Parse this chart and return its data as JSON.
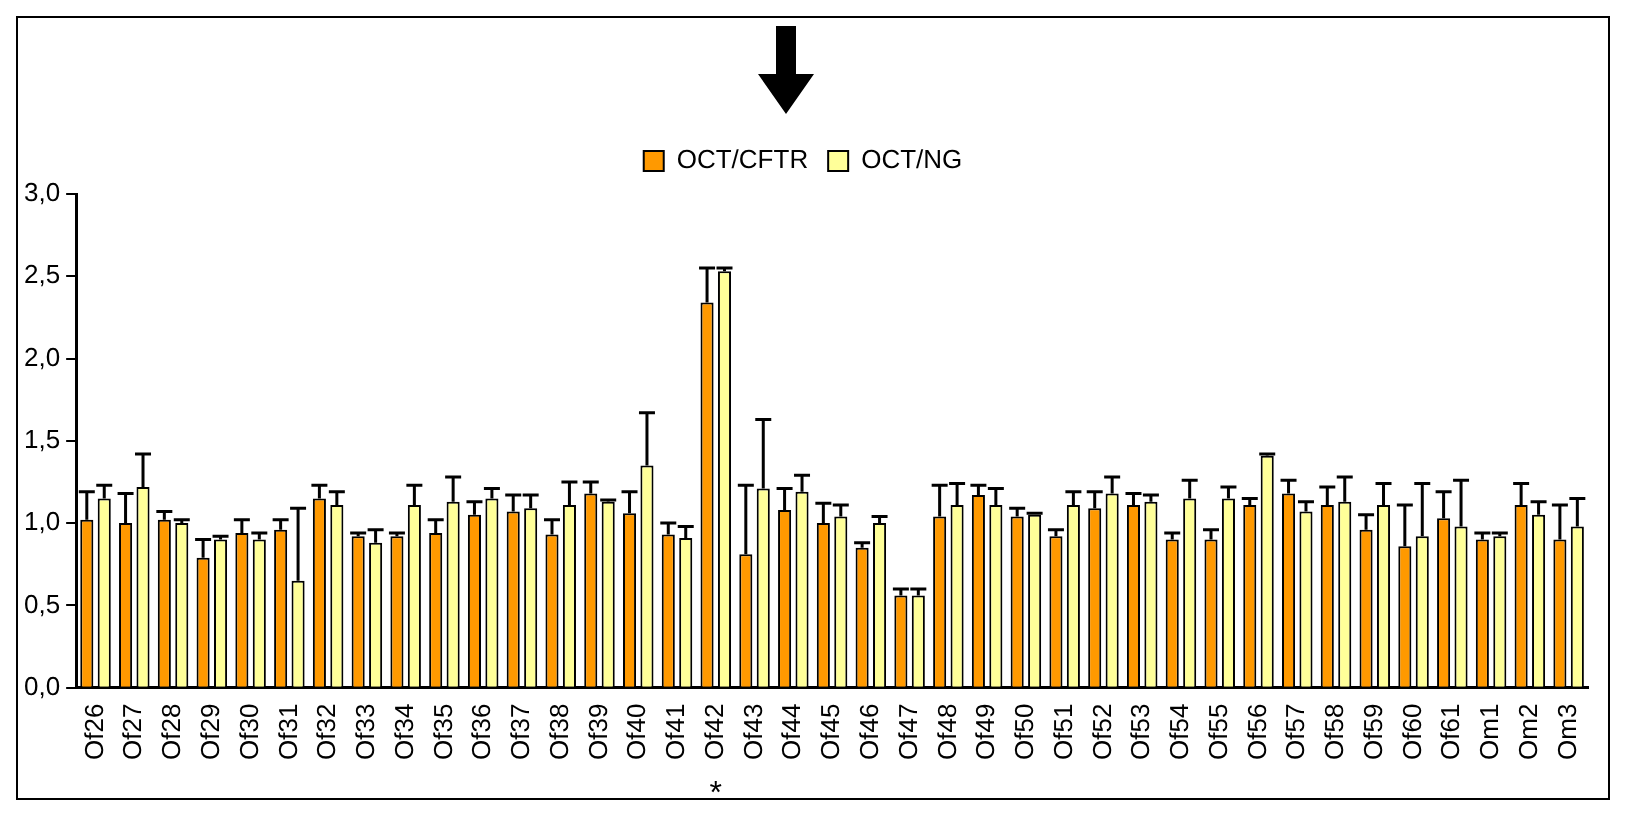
{
  "chart_data": {
    "type": "bar",
    "categories": [
      "Of26",
      "Of27",
      "Of28",
      "Of29",
      "Of30",
      "Of31",
      "Of32",
      "Of33",
      "Of34",
      "Of35",
      "Of36",
      "Of37",
      "Of38",
      "Of39",
      "Of40",
      "Of41",
      "Of42",
      "Of43",
      "Of44",
      "Of45",
      "Of46",
      "Of47",
      "Of48",
      "Of49",
      "Of50",
      "Of51",
      "Of52",
      "Of53",
      "Of54",
      "Of55",
      "Of56",
      "Of57",
      "Of58",
      "Of59",
      "Of60",
      "Of61",
      "Om1",
      "Om2",
      "Om3"
    ],
    "series": [
      {
        "name": "OCT/CFTR",
        "color": "#ff9900",
        "values": [
          1.02,
          1.0,
          1.02,
          0.79,
          0.94,
          0.96,
          1.15,
          0.92,
          0.92,
          0.94,
          1.05,
          1.07,
          0.93,
          1.18,
          1.06,
          0.93,
          2.34,
          0.81,
          1.08,
          1.0,
          0.85,
          0.56,
          1.04,
          1.17,
          1.04,
          0.92,
          1.09,
          1.11,
          0.9,
          0.9,
          1.11,
          1.18,
          1.11,
          0.96,
          0.86,
          1.03,
          0.9,
          1.11,
          0.9
        ],
        "errors": [
          [
            1.02,
            1.19
          ],
          [
            1.0,
            1.18
          ],
          [
            1.02,
            1.07
          ],
          [
            0.79,
            0.9
          ],
          [
            0.94,
            1.02
          ],
          [
            0.96,
            1.02
          ],
          [
            1.15,
            1.23
          ],
          [
            0.92,
            0.94
          ],
          [
            0.92,
            0.94
          ],
          [
            0.94,
            1.02
          ],
          [
            1.05,
            1.13
          ],
          [
            1.07,
            1.17
          ],
          [
            0.93,
            1.02
          ],
          [
            1.18,
            1.25
          ],
          [
            1.06,
            1.19
          ],
          [
            0.93,
            1.0
          ],
          [
            2.34,
            2.55
          ],
          [
            0.81,
            1.23
          ],
          [
            1.08,
            1.21
          ],
          [
            1.0,
            1.12
          ],
          [
            0.85,
            0.88
          ],
          [
            0.56,
            0.6
          ],
          [
            1.04,
            1.23
          ],
          [
            1.17,
            1.23
          ],
          [
            1.04,
            1.09
          ],
          [
            0.92,
            0.96
          ],
          [
            1.09,
            1.19
          ],
          [
            1.11,
            1.18
          ],
          [
            0.9,
            0.94
          ],
          [
            0.9,
            0.96
          ],
          [
            1.11,
            1.15
          ],
          [
            1.18,
            1.26
          ],
          [
            1.11,
            1.22
          ],
          [
            0.96,
            1.05
          ],
          [
            0.86,
            1.11
          ],
          [
            1.03,
            1.19
          ],
          [
            0.9,
            0.94
          ],
          [
            1.11,
            1.24
          ],
          [
            0.9,
            1.11
          ]
        ]
      },
      {
        "name": "OCT/NG",
        "color": "#ffff99",
        "values": [
          1.15,
          1.22,
          1.0,
          0.9,
          0.9,
          0.65,
          1.11,
          0.88,
          1.11,
          1.13,
          1.15,
          1.09,
          1.11,
          1.13,
          1.35,
          0.91,
          2.53,
          1.21,
          1.19,
          1.04,
          1.0,
          0.56,
          1.11,
          1.11,
          1.05,
          1.11,
          1.18,
          1.13,
          1.15,
          1.15,
          1.41,
          1.07,
          1.13,
          1.11,
          0.92,
          0.98,
          0.92,
          1.05,
          0.98
        ],
        "errors": [
          [
            1.15,
            1.23
          ],
          [
            1.22,
            1.42
          ],
          [
            1.0,
            1.02
          ],
          [
            0.9,
            0.92
          ],
          [
            0.9,
            0.94
          ],
          [
            0.65,
            1.09
          ],
          [
            1.11,
            1.19
          ],
          [
            0.88,
            0.96
          ],
          [
            1.11,
            1.23
          ],
          [
            1.13,
            1.28
          ],
          [
            1.15,
            1.21
          ],
          [
            1.09,
            1.17
          ],
          [
            1.11,
            1.25
          ],
          [
            1.13,
            1.14
          ],
          [
            1.35,
            1.67
          ],
          [
            0.91,
            0.98
          ],
          [
            2.53,
            2.55
          ],
          [
            1.21,
            1.63
          ],
          [
            1.19,
            1.29
          ],
          [
            1.04,
            1.11
          ],
          [
            1.0,
            1.04
          ],
          [
            0.56,
            0.6
          ],
          [
            1.11,
            1.24
          ],
          [
            1.11,
            1.21
          ],
          [
            1.05,
            1.06
          ],
          [
            1.11,
            1.19
          ],
          [
            1.18,
            1.28
          ],
          [
            1.13,
            1.17
          ],
          [
            1.15,
            1.26
          ],
          [
            1.15,
            1.22
          ],
          [
            1.41,
            1.42
          ],
          [
            1.07,
            1.13
          ],
          [
            1.13,
            1.28
          ],
          [
            1.11,
            1.24
          ],
          [
            0.92,
            1.24
          ],
          [
            0.98,
            1.26
          ],
          [
            0.92,
            0.94
          ],
          [
            1.05,
            1.13
          ],
          [
            0.98,
            1.15
          ]
        ]
      }
    ],
    "ylim": [
      0,
      3
    ],
    "yticks": [
      {
        "value": 0,
        "label": "0,0"
      },
      {
        "value": 0.5,
        "label": "0,5"
      },
      {
        "value": 1,
        "label": "1,0"
      },
      {
        "value": 1.5,
        "label": "1,5"
      },
      {
        "value": 2,
        "label": "2,0"
      },
      {
        "value": 2.5,
        "label": "2,5"
      },
      {
        "value": 3,
        "label": "3,0"
      }
    ],
    "grid": false,
    "legend": "top",
    "annotations": [
      "*"
    ]
  }
}
